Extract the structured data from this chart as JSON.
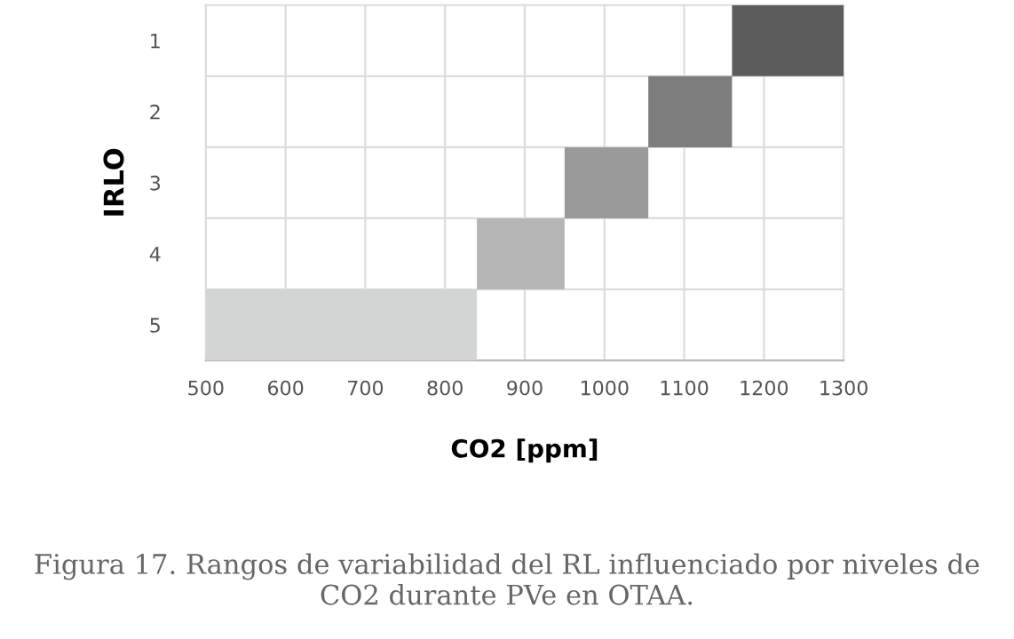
{
  "chart_data": {
    "type": "bar",
    "orientation": "horizontal",
    "xlabel": "CO2 [ppm]",
    "ylabel": "IRLO",
    "categories": [
      "1",
      "2",
      "3",
      "4",
      "5"
    ],
    "values": [
      140,
      105,
      105,
      110,
      340
    ],
    "base": [
      1160,
      1055,
      950,
      840,
      500
    ],
    "colors": [
      "#5c5c5c",
      "#7d7d7d",
      "#9a9a9a",
      "#b5b5b5",
      "#d3d5d5"
    ],
    "xlim": [
      500,
      1300
    ],
    "xticks": [
      500,
      600,
      700,
      800,
      900,
      1000,
      1100,
      1200,
      1300
    ],
    "grid": true,
    "annotations": [
      "Figura 17. Rangos de variabilidad del RL influenciado por niveles de CO2 durante PVe en OTAA."
    ]
  }
}
